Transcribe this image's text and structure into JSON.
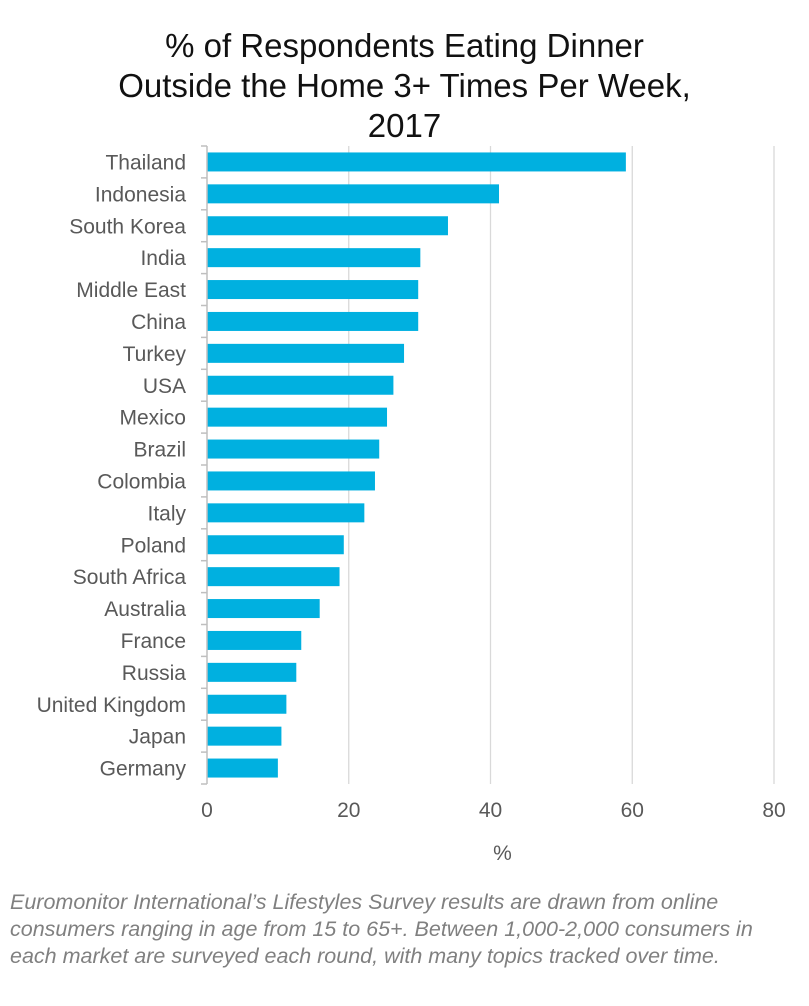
{
  "chart_data": {
    "type": "bar",
    "orientation": "horizontal",
    "title_lines": [
      "% of Respondents Eating Dinner",
      "Outside the Home 3+ Times Per Week,",
      "2017"
    ],
    "categories": [
      "Thailand",
      "Indonesia",
      "South Korea",
      "India",
      "Middle East",
      "China",
      "Turkey",
      "USA",
      "Mexico",
      "Brazil",
      "Colombia",
      "Italy",
      "Poland",
      "South Africa",
      "Australia",
      "France",
      "Russia",
      "United Kingdom",
      "Japan",
      "Germany"
    ],
    "values": [
      59.1,
      41.2,
      34.0,
      30.1,
      29.8,
      29.8,
      27.8,
      26.3,
      25.4,
      24.3,
      23.7,
      22.2,
      19.3,
      18.7,
      15.9,
      13.3,
      12.6,
      11.2,
      10.5,
      10.0
    ],
    "xlabel": "%",
    "ylabel": "",
    "xlim": [
      0,
      80
    ],
    "xticks": [
      "0",
      "20",
      "40",
      "60",
      "80"
    ],
    "grid": true,
    "bar_color": "#00b0e0",
    "grid_color": "#d9d9d9",
    "axis_color": "#bfbfbf"
  },
  "footnote": "Euromonitor International’s Lifestyles Survey results are drawn from online consumers ranging in age from 15 to 65+. Between 1,000-2,000 consumers in each market are surveyed each round, with many topics tracked over time."
}
